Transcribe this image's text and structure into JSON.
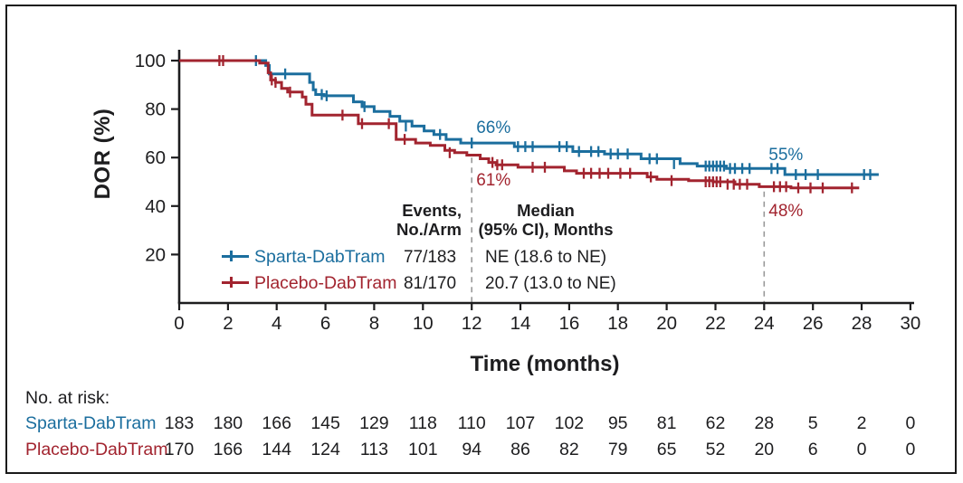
{
  "chart_data": {
    "type": "line",
    "subtype": "kaplan-meier-step",
    "title": "",
    "xlabel": "Time (months)",
    "ylabel": "DOR (%)",
    "xlim": [
      0,
      30
    ],
    "ylim": [
      0,
      100
    ],
    "x_ticks": [
      0,
      2,
      4,
      6,
      8,
      10,
      12,
      14,
      16,
      18,
      20,
      22,
      24,
      26,
      28,
      30
    ],
    "y_ticks": [
      20,
      40,
      60,
      80,
      100
    ],
    "grid": false,
    "legend_position": "inside-lower-left",
    "series": [
      {
        "name": "Sparta-DabTram",
        "color": "#1B6E9E",
        "steps": [
          [
            0,
            100
          ],
          [
            3.55,
            98
          ],
          [
            3.7,
            94.5
          ],
          [
            5.35,
            91
          ],
          [
            5.5,
            88
          ],
          [
            5.6,
            86
          ],
          [
            5.95,
            85.5
          ],
          [
            7.15,
            83
          ],
          [
            7.5,
            81
          ],
          [
            8.0,
            79
          ],
          [
            8.65,
            77
          ],
          [
            9.05,
            75
          ],
          [
            9.55,
            73
          ],
          [
            10.05,
            71
          ],
          [
            10.45,
            69.5
          ],
          [
            10.95,
            67.5
          ],
          [
            11.55,
            66
          ],
          [
            13.75,
            64.5
          ],
          [
            16.15,
            62.5
          ],
          [
            17.45,
            61.5
          ],
          [
            18.95,
            59.5
          ],
          [
            20.55,
            57.5
          ],
          [
            21.25,
            56.5
          ],
          [
            22.45,
            55.5
          ],
          [
            24.85,
            53
          ],
          [
            28.7,
            53
          ]
        ],
        "censors": [
          [
            3.15,
            100
          ],
          [
            4.35,
            94.5
          ],
          [
            5.85,
            86
          ],
          [
            6.05,
            85.5
          ],
          [
            7.6,
            81
          ],
          [
            9.3,
            73
          ],
          [
            10.7,
            69.5
          ],
          [
            12.0,
            66
          ],
          [
            13.9,
            64.5
          ],
          [
            14.2,
            64.5
          ],
          [
            14.5,
            64.5
          ],
          [
            15.6,
            64.5
          ],
          [
            15.9,
            64.5
          ],
          [
            16.4,
            62.5
          ],
          [
            16.9,
            62.5
          ],
          [
            17.2,
            62.5
          ],
          [
            17.7,
            61.5
          ],
          [
            18.0,
            61.5
          ],
          [
            18.4,
            61.5
          ],
          [
            19.3,
            59.5
          ],
          [
            19.6,
            59.5
          ],
          [
            20.3,
            57.5
          ],
          [
            21.6,
            56.5
          ],
          [
            21.75,
            56.5
          ],
          [
            21.9,
            56.5
          ],
          [
            22.05,
            56.5
          ],
          [
            22.2,
            56.5
          ],
          [
            22.35,
            56.5
          ],
          [
            22.6,
            55.5
          ],
          [
            22.8,
            55.5
          ],
          [
            23.1,
            55.5
          ],
          [
            23.4,
            55.5
          ],
          [
            24.3,
            55.5
          ],
          [
            24.55,
            55.5
          ],
          [
            25.3,
            53
          ],
          [
            25.7,
            53
          ],
          [
            26.2,
            53
          ],
          [
            28.1,
            53
          ],
          [
            28.35,
            53
          ]
        ]
      },
      {
        "name": "Placebo-DabTram",
        "color": "#A2242F",
        "steps": [
          [
            0,
            100
          ],
          [
            3.3,
            99
          ],
          [
            3.65,
            95
          ],
          [
            3.75,
            92
          ],
          [
            3.95,
            91
          ],
          [
            4.2,
            88.5
          ],
          [
            4.45,
            87
          ],
          [
            5.05,
            85
          ],
          [
            5.2,
            82
          ],
          [
            5.45,
            77.5
          ],
          [
            7.35,
            74
          ],
          [
            8.9,
            67.5
          ],
          [
            9.7,
            66
          ],
          [
            10.3,
            65
          ],
          [
            10.9,
            63
          ],
          [
            11.3,
            62
          ],
          [
            11.8,
            61
          ],
          [
            12.35,
            59.5
          ],
          [
            12.7,
            58
          ],
          [
            13.0,
            57
          ],
          [
            13.9,
            56
          ],
          [
            15.8,
            54.5
          ],
          [
            16.3,
            53.5
          ],
          [
            19.2,
            52
          ],
          [
            19.6,
            51
          ],
          [
            20.9,
            50.5
          ],
          [
            21.9,
            50
          ],
          [
            22.8,
            49
          ],
          [
            23.8,
            48
          ],
          [
            25.1,
            47.5
          ],
          [
            27.9,
            47.5
          ]
        ],
        "censors": [
          [
            1.65,
            100
          ],
          [
            1.8,
            100
          ],
          [
            3.8,
            92
          ],
          [
            3.95,
            91
          ],
          [
            4.55,
            87
          ],
          [
            6.7,
            77.5
          ],
          [
            7.5,
            74
          ],
          [
            8.6,
            74
          ],
          [
            9.25,
            67.5
          ],
          [
            11.1,
            62
          ],
          [
            12.85,
            58
          ],
          [
            13.05,
            57
          ],
          [
            13.25,
            57
          ],
          [
            14.5,
            56
          ],
          [
            15.0,
            56
          ],
          [
            16.6,
            53.5
          ],
          [
            16.9,
            53.5
          ],
          [
            17.25,
            53.5
          ],
          [
            17.6,
            53.5
          ],
          [
            18.1,
            53.5
          ],
          [
            18.5,
            53.5
          ],
          [
            19.35,
            52
          ],
          [
            20.2,
            50.5
          ],
          [
            21.6,
            50
          ],
          [
            21.75,
            50
          ],
          [
            21.9,
            50
          ],
          [
            22.05,
            50
          ],
          [
            22.2,
            50
          ],
          [
            22.5,
            49
          ],
          [
            22.75,
            49
          ],
          [
            23.0,
            49
          ],
          [
            23.3,
            49
          ],
          [
            24.4,
            48
          ],
          [
            24.65,
            48
          ],
          [
            24.9,
            48
          ],
          [
            25.4,
            47.5
          ],
          [
            25.9,
            47.5
          ],
          [
            26.4,
            47.5
          ],
          [
            27.6,
            47.5
          ]
        ]
      }
    ],
    "annotations": [
      {
        "text": "66%",
        "month": 12,
        "pct": 66,
        "series": "Sparta-DabTram",
        "color": "#1B6E9E",
        "position": "above"
      },
      {
        "text": "61%",
        "month": 12,
        "pct": 61,
        "series": "Placebo-DabTram",
        "color": "#A2242F",
        "position": "below"
      },
      {
        "text": "55%",
        "month": 24,
        "pct": 55,
        "series": "Sparta-DabTram",
        "color": "#1B6E9E",
        "position": "above"
      },
      {
        "text": "48%",
        "month": 24,
        "pct": 48,
        "series": "Placebo-DabTram",
        "color": "#A2242F",
        "position": "below"
      }
    ],
    "ref_lines": [
      {
        "month": 12,
        "from_pct": 60
      },
      {
        "month": 24,
        "from_pct": 46
      }
    ]
  },
  "legend": {
    "events_header_line1": "Events,",
    "events_header_line2": "No./Arm",
    "median_header_line1": "Median",
    "median_header_line2": "(95% CI), Months",
    "rows": [
      {
        "label": "Sparta-DabTram",
        "events": "77/183",
        "median": "NE (18.6 to NE)",
        "color": "#1B6E9E"
      },
      {
        "label": "Placebo-DabTram",
        "events": "81/170",
        "median": "20.7 (13.0 to NE)",
        "color": "#A2242F"
      }
    ]
  },
  "risk_table": {
    "title": "No. at risk:",
    "rows": [
      {
        "label": "Sparta-DabTram",
        "color": "#1B6E9E",
        "values": [
          "183",
          "180",
          "166",
          "145",
          "129",
          "118",
          "110",
          "107",
          "102",
          "95",
          "81",
          "62",
          "28",
          "5",
          "2",
          "0"
        ]
      },
      {
        "label": "Placebo-DabTram",
        "color": "#A2242F",
        "values": [
          "170",
          "166",
          "144",
          "124",
          "113",
          "101",
          "94",
          "86",
          "82",
          "79",
          "65",
          "52",
          "20",
          "6",
          "0",
          "0"
        ]
      }
    ]
  },
  "colors": {
    "axis": "#1d1d1f",
    "ref_line": "#999999",
    "text": "#1d1d1f"
  }
}
